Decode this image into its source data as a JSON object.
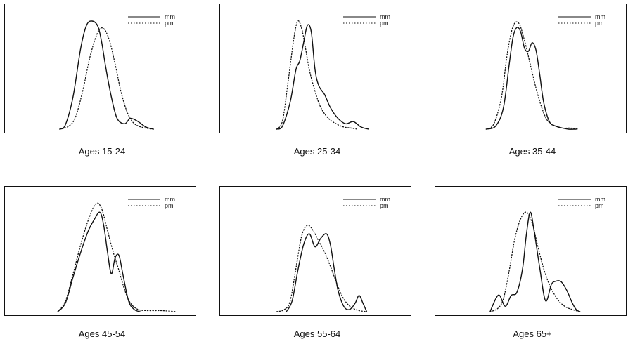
{
  "figure": {
    "legend_labels": [
      "mm",
      "pm"
    ]
  },
  "chart_data": [
    {
      "type": "line",
      "caption": "Ages 15-24",
      "xlim": [
        0,
        100
      ],
      "ylim": [
        0,
        1
      ],
      "grid": false,
      "legend": "top-right",
      "series": [
        {
          "name": "mm",
          "style": "solid",
          "x": [
            29,
            32,
            36,
            40,
            43,
            46,
            49,
            51,
            53,
            56,
            59,
            63,
            66,
            70,
            74,
            78
          ],
          "y": [
            0,
            0.04,
            0.3,
            0.75,
            0.96,
            1.0,
            0.95,
            0.8,
            0.58,
            0.3,
            0.1,
            0.05,
            0.1,
            0.07,
            0.02,
            0
          ]
        },
        {
          "name": "pm",
          "style": "dotted",
          "x": [
            29,
            33,
            37,
            41,
            45,
            49,
            52,
            55,
            58,
            61,
            64,
            67,
            70,
            74,
            78
          ],
          "y": [
            0,
            0.02,
            0.1,
            0.35,
            0.68,
            0.9,
            0.93,
            0.82,
            0.6,
            0.35,
            0.17,
            0.07,
            0.03,
            0.01,
            0
          ]
        }
      ]
    },
    {
      "type": "line",
      "caption": "Ages 25-34",
      "xlim": [
        0,
        100
      ],
      "ylim": [
        0,
        1
      ],
      "grid": false,
      "legend": "top-right",
      "series": [
        {
          "name": "mm",
          "style": "solid",
          "x": [
            30,
            33,
            37,
            40,
            42,
            44,
            46,
            48,
            50,
            52,
            55,
            58,
            62,
            66,
            70,
            74,
            78
          ],
          "y": [
            0,
            0.03,
            0.25,
            0.55,
            0.63,
            0.8,
            0.96,
            0.9,
            0.55,
            0.4,
            0.32,
            0.2,
            0.1,
            0.05,
            0.07,
            0.02,
            0
          ]
        },
        {
          "name": "pm",
          "style": "dotted",
          "x": [
            30,
            33,
            36,
            39,
            41,
            43,
            45,
            47,
            50,
            53,
            57,
            61,
            65,
            69,
            72
          ],
          "y": [
            0,
            0.08,
            0.45,
            0.85,
            1.0,
            0.93,
            0.75,
            0.55,
            0.35,
            0.2,
            0.1,
            0.05,
            0.02,
            0.01,
            0
          ]
        }
      ]
    },
    {
      "type": "line",
      "caption": "Ages 35-44",
      "xlim": [
        0,
        100
      ],
      "ylim": [
        0,
        1
      ],
      "grid": false,
      "legend": "top-right",
      "series": [
        {
          "name": "mm",
          "style": "solid",
          "x": [
            27,
            32,
            36,
            39,
            41,
            43,
            45,
            47,
            49,
            51,
            53,
            55,
            57,
            60,
            63,
            67,
            70,
            74
          ],
          "y": [
            0,
            0.03,
            0.2,
            0.6,
            0.85,
            0.94,
            0.9,
            0.75,
            0.72,
            0.8,
            0.73,
            0.5,
            0.25,
            0.07,
            0.03,
            0.01,
            0,
            0
          ]
        },
        {
          "name": "pm",
          "style": "dotted",
          "x": [
            27,
            31,
            35,
            38,
            41,
            44,
            47,
            50,
            53,
            56,
            59,
            63,
            67,
            71,
            75
          ],
          "y": [
            0,
            0.05,
            0.3,
            0.7,
            0.95,
            0.98,
            0.82,
            0.6,
            0.38,
            0.2,
            0.08,
            0.03,
            0.01,
            0.01,
            0
          ]
        }
      ]
    },
    {
      "type": "line",
      "caption": "Ages 45-54",
      "xlim": [
        0,
        100
      ],
      "ylim": [
        0,
        1
      ],
      "grid": false,
      "legend": "top-right",
      "series": [
        {
          "name": "mm",
          "style": "solid",
          "x": [
            28,
            32,
            36,
            40,
            44,
            47,
            50,
            52,
            54,
            56,
            58,
            60,
            62,
            65,
            68,
            71
          ],
          "y": [
            0,
            0.08,
            0.32,
            0.55,
            0.75,
            0.85,
            0.92,
            0.8,
            0.55,
            0.35,
            0.5,
            0.52,
            0.35,
            0.1,
            0.02,
            0
          ]
        },
        {
          "name": "pm",
          "style": "dotted",
          "x": [
            28,
            32,
            36,
            40,
            44,
            48,
            51,
            54,
            57,
            60,
            63,
            66,
            70,
            75,
            82,
            90
          ],
          "y": [
            0,
            0.1,
            0.35,
            0.62,
            0.85,
            1.0,
            0.95,
            0.75,
            0.55,
            0.38,
            0.2,
            0.08,
            0.02,
            0.01,
            0.01,
            0
          ]
        }
      ]
    },
    {
      "type": "line",
      "caption": "Ages 55-64",
      "xlim": [
        0,
        100
      ],
      "ylim": [
        0,
        1
      ],
      "grid": false,
      "legend": "top-right",
      "series": [
        {
          "name": "mm",
          "style": "solid",
          "x": [
            35,
            38,
            41,
            44,
            47,
            50,
            53,
            56,
            58,
            60,
            62,
            65,
            68,
            71,
            73,
            75,
            77
          ],
          "y": [
            0,
            0.1,
            0.38,
            0.62,
            0.72,
            0.6,
            0.68,
            0.72,
            0.62,
            0.4,
            0.2,
            0.05,
            0.02,
            0.08,
            0.15,
            0.08,
            0
          ]
        },
        {
          "name": "pm",
          "style": "dotted",
          "x": [
            30,
            34,
            37,
            40,
            43,
            46,
            49,
            52,
            55,
            58,
            61,
            64,
            67,
            70,
            73,
            77
          ],
          "y": [
            0,
            0.02,
            0.1,
            0.4,
            0.7,
            0.8,
            0.75,
            0.65,
            0.55,
            0.42,
            0.28,
            0.15,
            0.07,
            0.03,
            0.01,
            0
          ]
        }
      ]
    },
    {
      "type": "line",
      "caption": "Ages 65+",
      "xlim": [
        0,
        100
      ],
      "ylim": [
        0,
        1
      ],
      "grid": false,
      "legend": "top-right",
      "series": [
        {
          "name": "mm",
          "style": "solid",
          "x": [
            29,
            32,
            34,
            37,
            40,
            43,
            46,
            48,
            50,
            52,
            55,
            58,
            61,
            63,
            66,
            69,
            72,
            74,
            76
          ],
          "y": [
            0,
            0.12,
            0.15,
            0.05,
            0.15,
            0.18,
            0.4,
            0.72,
            0.92,
            0.75,
            0.4,
            0.1,
            0.25,
            0.28,
            0.28,
            0.2,
            0.08,
            0.02,
            0
          ]
        },
        {
          "name": "pm",
          "style": "dotted",
          "x": [
            29,
            33,
            36,
            39,
            42,
            45,
            48,
            51,
            54,
            57,
            60,
            64,
            68,
            72,
            76
          ],
          "y": [
            0,
            0.03,
            0.12,
            0.38,
            0.68,
            0.86,
            0.92,
            0.82,
            0.6,
            0.4,
            0.25,
            0.12,
            0.05,
            0.02,
            0
          ]
        }
      ]
    }
  ]
}
